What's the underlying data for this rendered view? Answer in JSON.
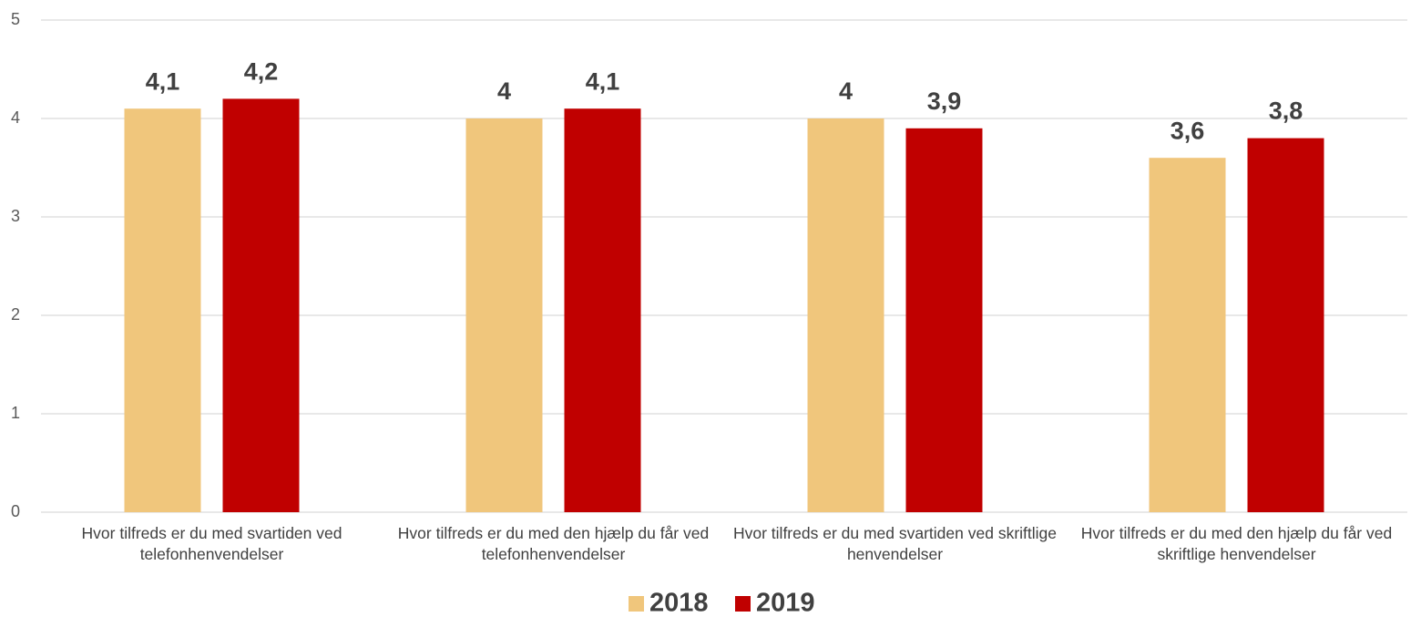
{
  "chart_data": {
    "type": "bar",
    "categories": [
      "Hvor tilfreds er du med svartiden ved telefonhenvendelser",
      "Hvor tilfreds er du med den hjælp du får ved telefonhenvendelser",
      "Hvor tilfreds er du med svartiden ved skriftlige henvendelser",
      "Hvor tilfreds er du med den hjælp du får ved skriftlige henvendelser"
    ],
    "series": [
      {
        "name": "2018",
        "color": "#f0c67c",
        "values": [
          4.1,
          4,
          4,
          3.6
        ],
        "value_labels": [
          "4,1",
          "4",
          "4",
          "3,6"
        ]
      },
      {
        "name": "2019",
        "color": "#c00000",
        "values": [
          4.2,
          4.1,
          3.9,
          3.8
        ],
        "value_labels": [
          "4,2",
          "4,1",
          "3,9",
          "3,8"
        ]
      }
    ],
    "ylim": [
      0,
      5
    ],
    "yticks": [
      0,
      1,
      2,
      3,
      4,
      5
    ],
    "grid": true,
    "legend": "bottom"
  }
}
